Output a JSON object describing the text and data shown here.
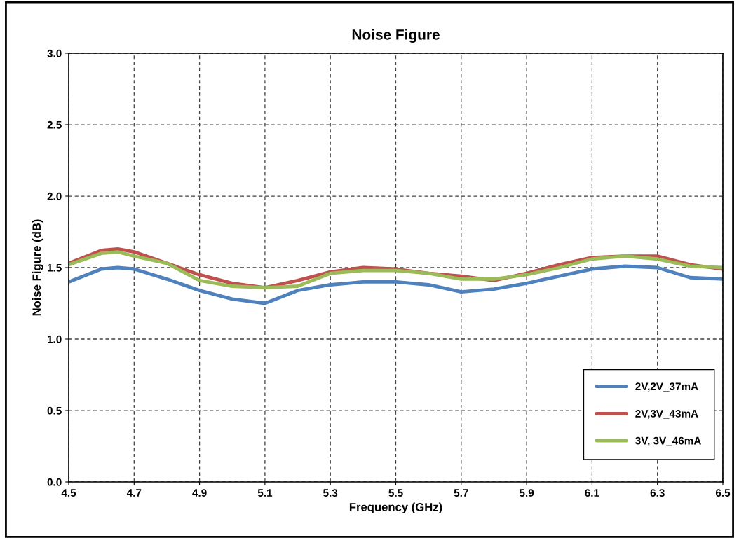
{
  "chart_data": {
    "type": "line",
    "title": "Noise Figure",
    "xlabel": "Frequency (GHz)",
    "ylabel": "Noise Figure (dB)",
    "x": [
      4.5,
      4.6,
      4.65,
      4.7,
      4.8,
      4.9,
      5.0,
      5.1,
      5.2,
      5.3,
      5.4,
      5.5,
      5.6,
      5.7,
      5.8,
      5.9,
      6.0,
      6.1,
      6.2,
      6.3,
      6.4,
      6.5
    ],
    "series": [
      {
        "name": "2V,2V_37mA",
        "color": "#4f81bd",
        "values": [
          1.4,
          1.49,
          1.5,
          1.49,
          1.42,
          1.34,
          1.28,
          1.25,
          1.34,
          1.38,
          1.4,
          1.4,
          1.38,
          1.33,
          1.35,
          1.39,
          1.44,
          1.49,
          1.51,
          1.5,
          1.43,
          1.42
        ]
      },
      {
        "name": "2V,3V_43mA",
        "color": "#c0504d",
        "values": [
          1.53,
          1.62,
          1.63,
          1.61,
          1.53,
          1.45,
          1.39,
          1.36,
          1.41,
          1.47,
          1.5,
          1.49,
          1.46,
          1.44,
          1.41,
          1.46,
          1.52,
          1.57,
          1.58,
          1.58,
          1.52,
          1.49
        ]
      },
      {
        "name": "3V, 3V_46mA",
        "color": "#9bbb59",
        "values": [
          1.52,
          1.6,
          1.61,
          1.58,
          1.53,
          1.41,
          1.37,
          1.36,
          1.37,
          1.46,
          1.48,
          1.48,
          1.46,
          1.42,
          1.42,
          1.45,
          1.5,
          1.56,
          1.58,
          1.56,
          1.51,
          1.5
        ]
      }
    ],
    "xlim": [
      4.5,
      6.5
    ],
    "xticks": [
      4.5,
      4.7,
      4.9,
      5.1,
      5.3,
      5.5,
      5.7,
      5.9,
      6.1,
      6.3,
      6.5
    ],
    "ylim": [
      0,
      3
    ],
    "yticks": [
      {
        "value": 0,
        "label": "0.0"
      },
      {
        "value": 0.5,
        "label": "0.5"
      },
      {
        "value": 1,
        "label": "1.0"
      },
      {
        "value": 1.5,
        "label": "1.5"
      },
      {
        "value": 2,
        "label": "2.0"
      },
      {
        "value": 2.5,
        "label": "2.5"
      },
      {
        "value": 3,
        "label": "3.0"
      }
    ],
    "grid": true,
    "legend": "bottom right",
    "marker": "none",
    "line_style": "solid"
  }
}
